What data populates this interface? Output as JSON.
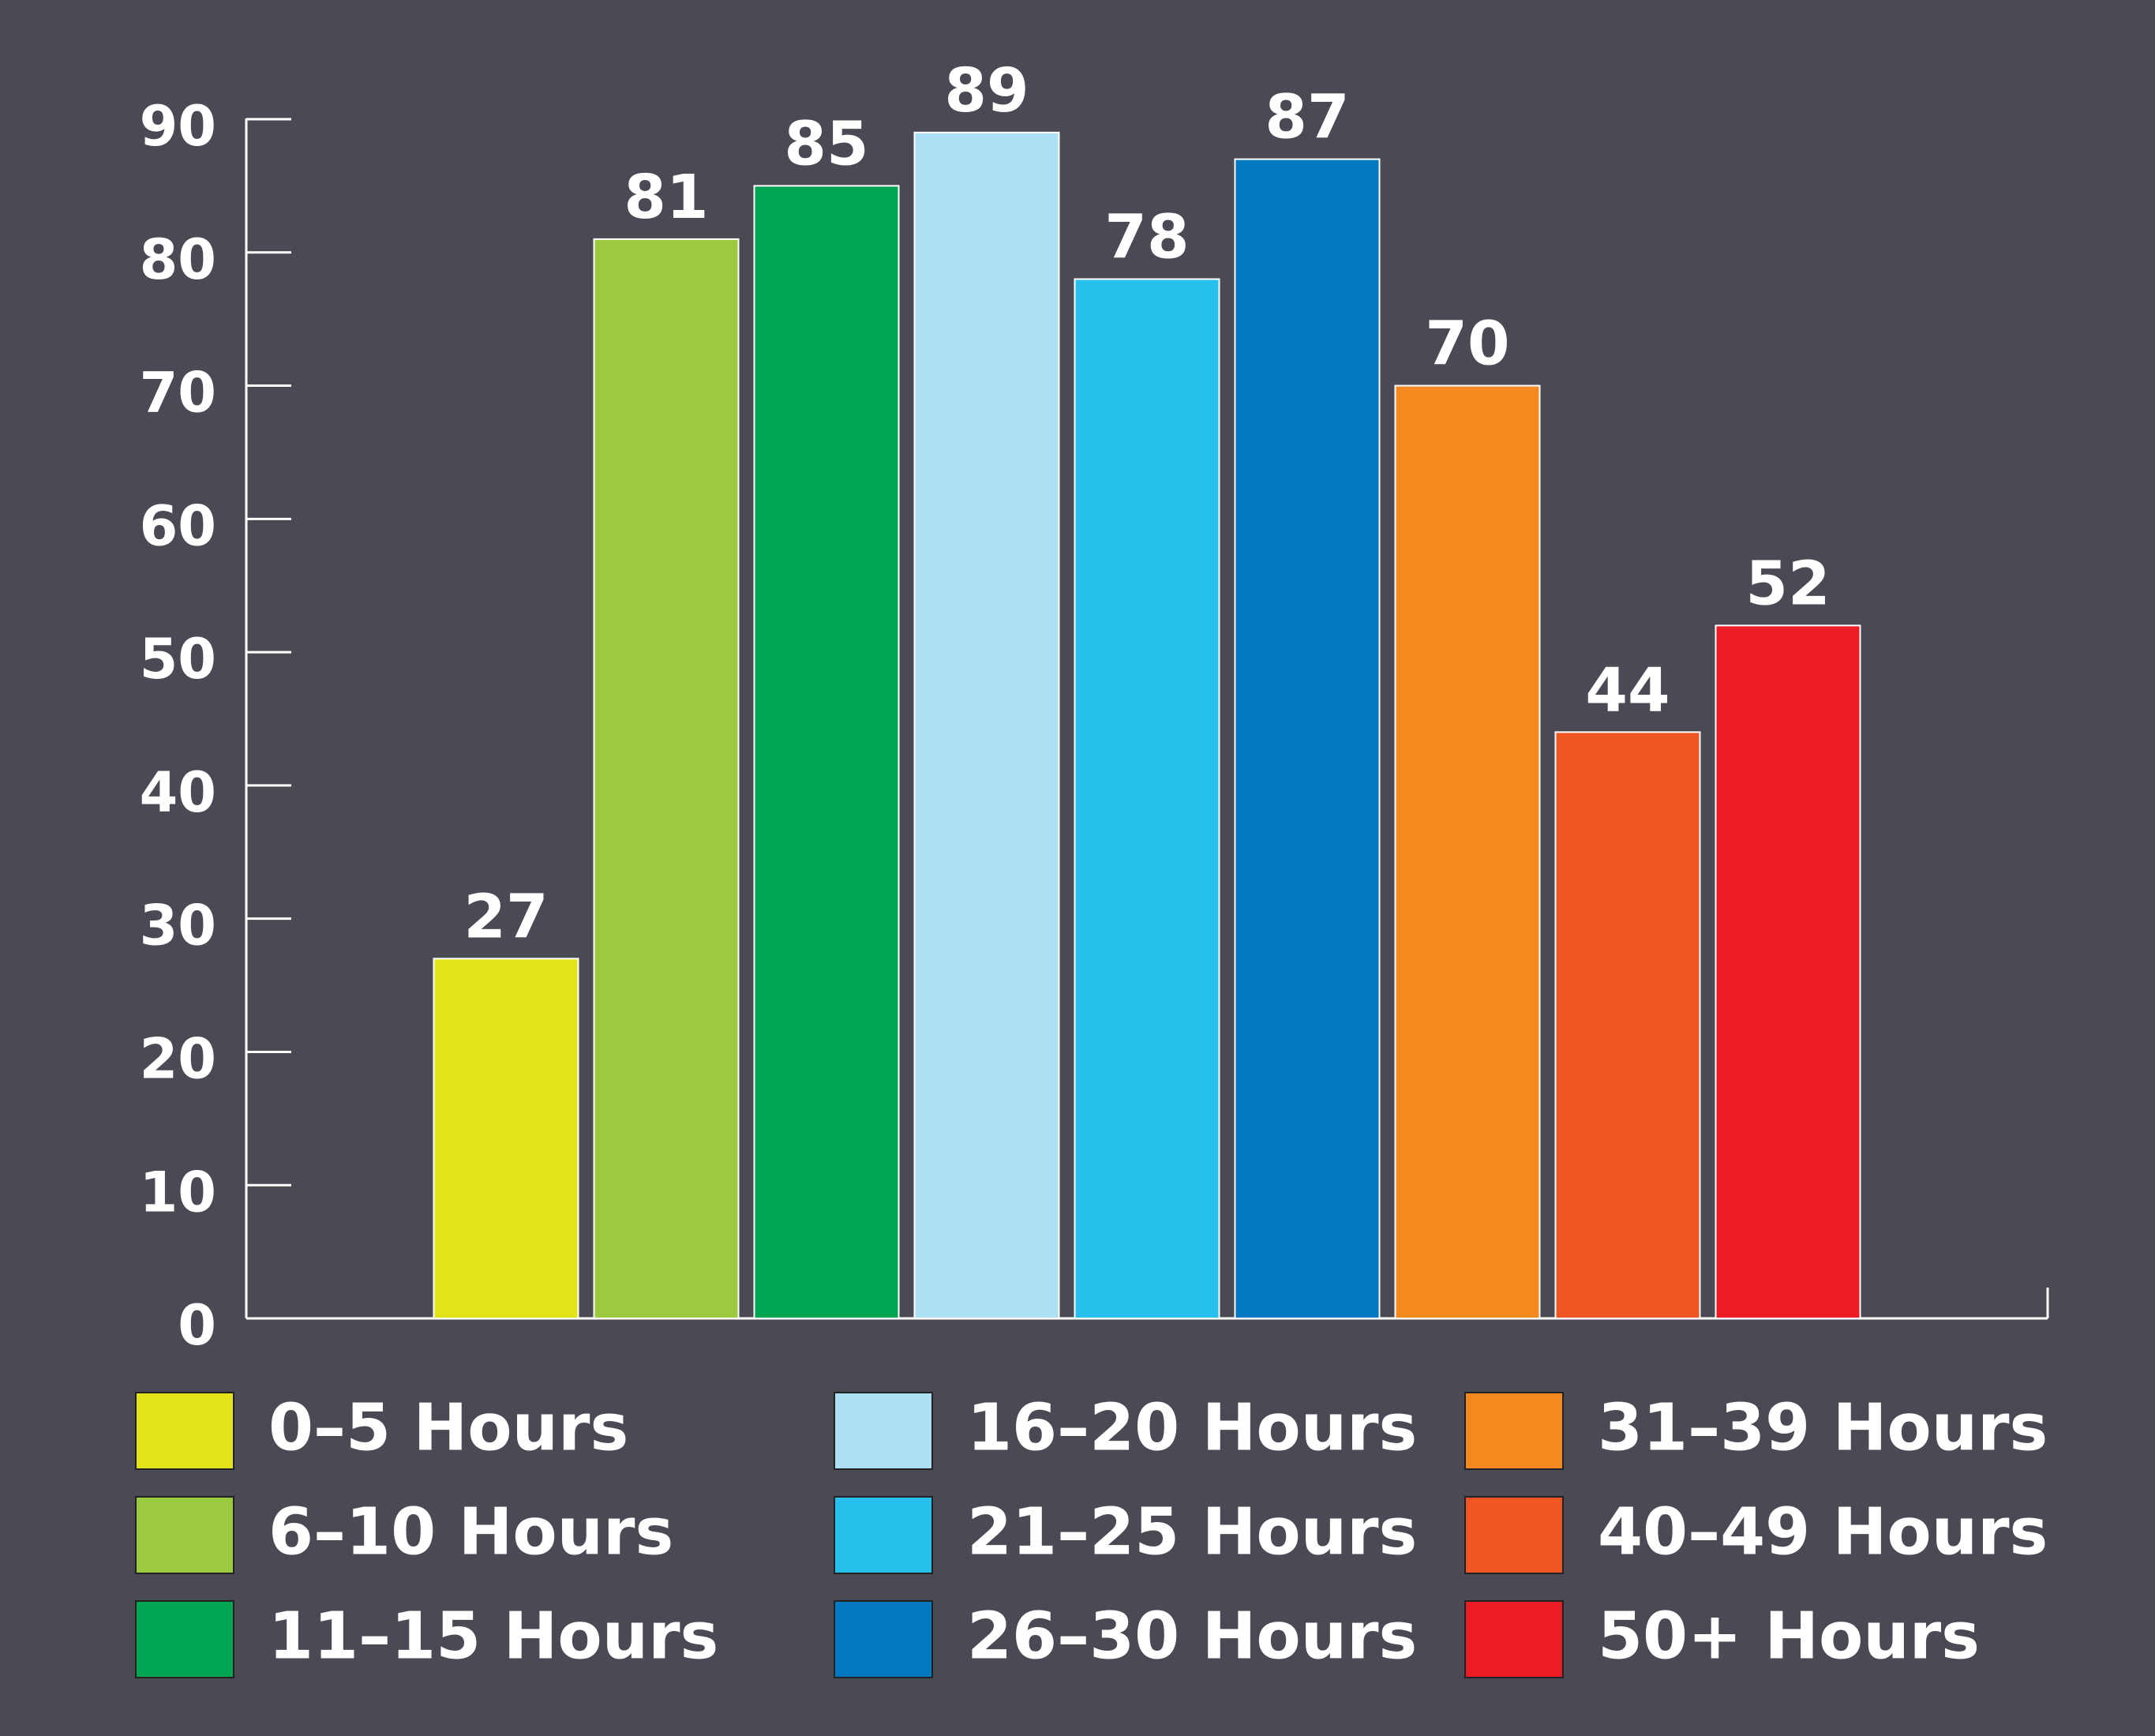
{
  "chart_data": {
    "type": "bar",
    "categories": [
      "0–5 Hours",
      "6–10 Hours",
      "11–15 Hours",
      "16–20 Hours",
      "21–25 Hours",
      "26–30 Hours",
      "31–39 Hours",
      "40–49 Hours",
      "50+ Hours"
    ],
    "values": [
      27,
      81,
      85,
      89,
      78,
      87,
      70,
      44,
      52
    ],
    "colors": [
      "#e3e31a",
      "#9bc93f",
      "#00a551",
      "#ade0f4",
      "#27c0ec",
      "#0079c1",
      "#f3891f",
      "#ef5624",
      "#ec1c24"
    ],
    "ylim": [
      0,
      90
    ],
    "yticks": [
      0,
      10,
      20,
      30,
      40,
      50,
      60,
      70,
      80,
      90
    ],
    "grid": false,
    "legend": "bottom"
  }
}
